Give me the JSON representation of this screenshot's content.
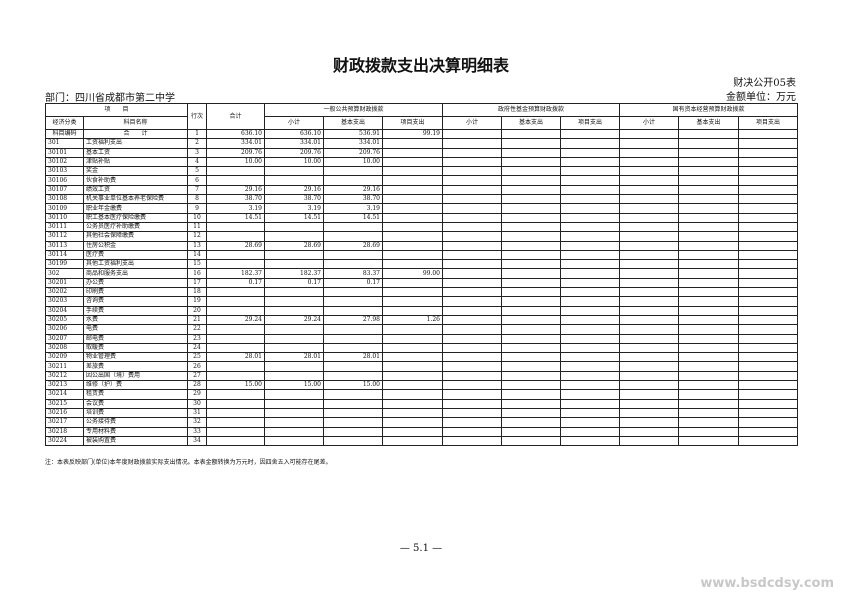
{
  "title": "财政拨款支出决算明细表",
  "form_no": "财决公开05表",
  "unit": "金额单位：万元",
  "department": "部门：四川省成都市第二中学",
  "headers": {
    "item": "项　　目",
    "row_no": "行次",
    "total": "合计",
    "general": "一般公共预算财政拨款",
    "fund": "政府性基金预算财政拨款",
    "state": "国有资本经营预算财政拨款",
    "econ_class": "经济分类",
    "subject_code": "科目编码",
    "subject_name": "科目名称",
    "subtotal": "小计",
    "basic": "基本支出",
    "project": "项目支出"
  },
  "rows": [
    {
      "code": "",
      "name": "合　　计",
      "no": "1",
      "total": "636.10",
      "sub": "636.10",
      "basic": "536.91",
      "proj": "99.19"
    },
    {
      "code": "301",
      "name": "工资福利支出",
      "no": "2",
      "total": "334.01",
      "sub": "334.01",
      "basic": "334.01",
      "proj": ""
    },
    {
      "code": "30101",
      "name": "基本工资",
      "no": "3",
      "total": "209.76",
      "sub": "209.76",
      "basic": "209.76",
      "proj": ""
    },
    {
      "code": "30102",
      "name": "津贴补贴",
      "no": "4",
      "total": "10.00",
      "sub": "10.00",
      "basic": "10.00",
      "proj": ""
    },
    {
      "code": "30103",
      "name": "奖金",
      "no": "5",
      "total": "",
      "sub": "",
      "basic": "",
      "proj": ""
    },
    {
      "code": "30106",
      "name": "伙食补助费",
      "no": "6",
      "total": "",
      "sub": "",
      "basic": "",
      "proj": ""
    },
    {
      "code": "30107",
      "name": "绩效工资",
      "no": "7",
      "total": "29.16",
      "sub": "29.16",
      "basic": "29.16",
      "proj": ""
    },
    {
      "code": "30108",
      "name": "机关事业单位基本养老保险费",
      "no": "8",
      "total": "38.70",
      "sub": "38.70",
      "basic": "38.70",
      "proj": ""
    },
    {
      "code": "30109",
      "name": "职业年金缴费",
      "no": "9",
      "total": "3.19",
      "sub": "3.19",
      "basic": "3.19",
      "proj": ""
    },
    {
      "code": "30110",
      "name": "职工基本医疗保险缴费",
      "no": "10",
      "total": "14.51",
      "sub": "14.51",
      "basic": "14.51",
      "proj": ""
    },
    {
      "code": "30111",
      "name": "公务员医疗补助缴费",
      "no": "11",
      "total": "",
      "sub": "",
      "basic": "",
      "proj": ""
    },
    {
      "code": "30112",
      "name": "其他社会保障缴费",
      "no": "12",
      "total": "",
      "sub": "",
      "basic": "",
      "proj": ""
    },
    {
      "code": "30113",
      "name": "住房公积金",
      "no": "13",
      "total": "28.69",
      "sub": "28.69",
      "basic": "28.69",
      "proj": ""
    },
    {
      "code": "30114",
      "name": "医疗费",
      "no": "14",
      "total": "",
      "sub": "",
      "basic": "",
      "proj": ""
    },
    {
      "code": "30199",
      "name": "其他工资福利支出",
      "no": "15",
      "total": "",
      "sub": "",
      "basic": "",
      "proj": ""
    },
    {
      "code": "302",
      "name": "商品和服务支出",
      "no": "16",
      "total": "182.37",
      "sub": "182.37",
      "basic": "83.37",
      "proj": "99.00"
    },
    {
      "code": "30201",
      "name": "办公费",
      "no": "17",
      "total": "0.17",
      "sub": "0.17",
      "basic": "0.17",
      "proj": ""
    },
    {
      "code": "30202",
      "name": "印刷费",
      "no": "18",
      "total": "",
      "sub": "",
      "basic": "",
      "proj": ""
    },
    {
      "code": "30203",
      "name": "咨询费",
      "no": "19",
      "total": "",
      "sub": "",
      "basic": "",
      "proj": ""
    },
    {
      "code": "30204",
      "name": "手续费",
      "no": "20",
      "total": "",
      "sub": "",
      "basic": "",
      "proj": ""
    },
    {
      "code": "30205",
      "name": "水费",
      "no": "21",
      "total": "29.24",
      "sub": "29.24",
      "basic": "27.98",
      "proj": "1.26"
    },
    {
      "code": "30206",
      "name": "电费",
      "no": "22",
      "total": "",
      "sub": "",
      "basic": "",
      "proj": ""
    },
    {
      "code": "30207",
      "name": "邮电费",
      "no": "23",
      "total": "",
      "sub": "",
      "basic": "",
      "proj": ""
    },
    {
      "code": "30208",
      "name": "取暖费",
      "no": "24",
      "total": "",
      "sub": "",
      "basic": "",
      "proj": ""
    },
    {
      "code": "30209",
      "name": "物业管理费",
      "no": "25",
      "total": "28.01",
      "sub": "28.01",
      "basic": "28.01",
      "proj": ""
    },
    {
      "code": "30211",
      "name": "差旅费",
      "no": "26",
      "total": "",
      "sub": "",
      "basic": "",
      "proj": ""
    },
    {
      "code": "30212",
      "name": "因公出国（境）费用",
      "no": "27",
      "total": "",
      "sub": "",
      "basic": "",
      "proj": ""
    },
    {
      "code": "30213",
      "name": "维修（护）费",
      "no": "28",
      "total": "15.00",
      "sub": "15.00",
      "basic": "15.00",
      "proj": ""
    },
    {
      "code": "30214",
      "name": "租赁费",
      "no": "29",
      "total": "",
      "sub": "",
      "basic": "",
      "proj": ""
    },
    {
      "code": "30215",
      "name": "会议费",
      "no": "30",
      "total": "",
      "sub": "",
      "basic": "",
      "proj": ""
    },
    {
      "code": "30216",
      "name": "培训费",
      "no": "31",
      "total": "",
      "sub": "",
      "basic": "",
      "proj": ""
    },
    {
      "code": "30217",
      "name": "公务接待费",
      "no": "32",
      "total": "",
      "sub": "",
      "basic": "",
      "proj": ""
    },
    {
      "code": "30218",
      "name": "专用材料费",
      "no": "33",
      "total": "",
      "sub": "",
      "basic": "",
      "proj": ""
    },
    {
      "code": "30224",
      "name": "被装购置费",
      "no": "34",
      "total": "",
      "sub": "",
      "basic": "",
      "proj": ""
    }
  ],
  "note": "注：本表反映部门(单位)本年度财政拨款实际支出情况。本表金额转换为万元时，因四舍五入可能存在尾差。",
  "page_number": "— 5.1 —",
  "watermark": "www.bsdcdsy.com"
}
